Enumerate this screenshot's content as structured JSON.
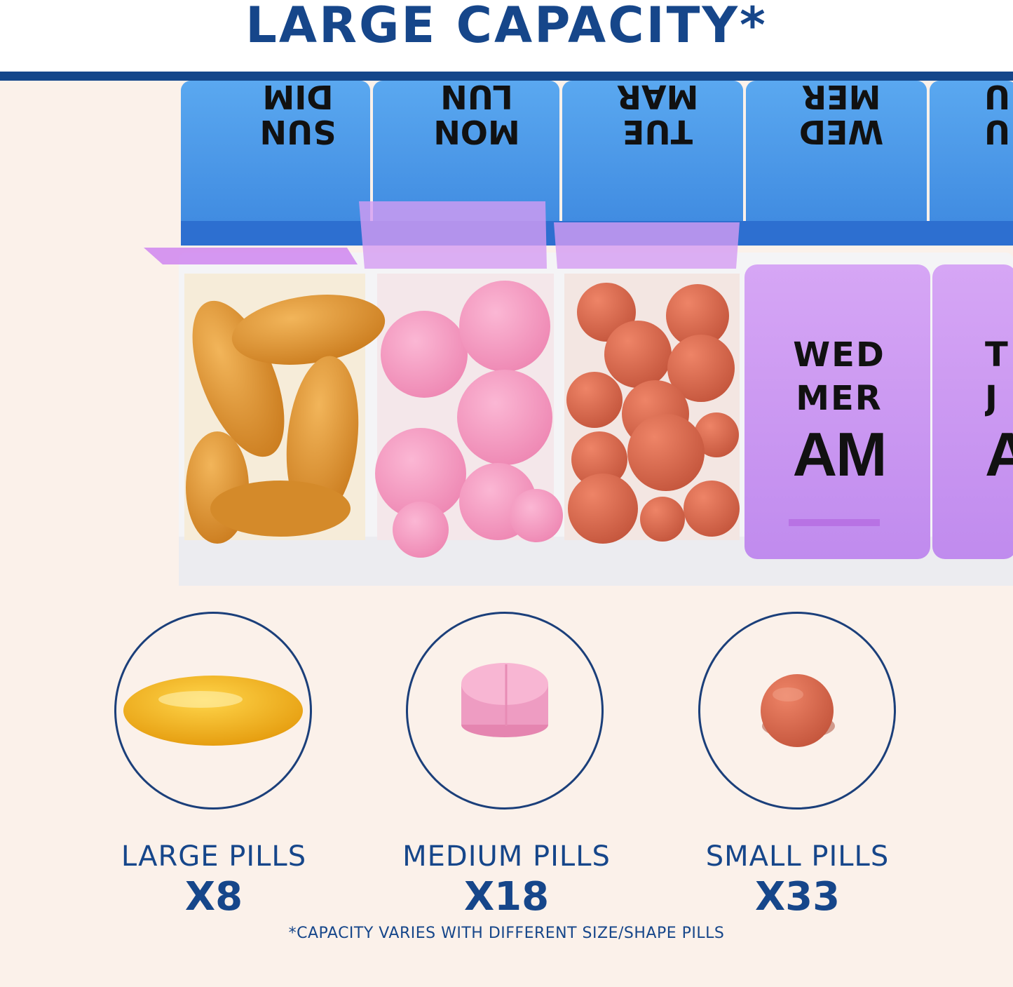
{
  "header": {
    "title": "LARGE CAPACITY*"
  },
  "organizer": {
    "top_lids": [
      {
        "day": "SUN",
        "alt": "DIM"
      },
      {
        "day": "MON",
        "alt": "LUN"
      },
      {
        "day": "TUE",
        "alt": "MAR"
      },
      {
        "day": "WED",
        "alt": "MER"
      },
      {
        "day": "U",
        "alt": "U"
      }
    ],
    "front_lid": {
      "day": "WED",
      "alt": "MER",
      "period": "AM"
    },
    "partial_lid": {
      "day": "T",
      "alt": "J",
      "period": "A"
    },
    "colors": {
      "blue_lid": "#4d9de8",
      "purple_lid": "#c98ff0",
      "tray": "#ffffff"
    }
  },
  "pill_sizes": [
    {
      "label": "LARGE PILLS",
      "count": "X8",
      "pill": "softgel-capsule"
    },
    {
      "label": "MEDIUM PILLS",
      "count": "X18",
      "pill": "pink-tablet"
    },
    {
      "label": "SMALL PILLS",
      "count": "X33",
      "pill": "red-round-pill"
    }
  ],
  "footnote": "*CAPACITY VARIES WITH DIFFERENT SIZE/SHAPE PILLS",
  "colors": {
    "brand_blue": "#16468a",
    "background": "#fbf1ea"
  }
}
